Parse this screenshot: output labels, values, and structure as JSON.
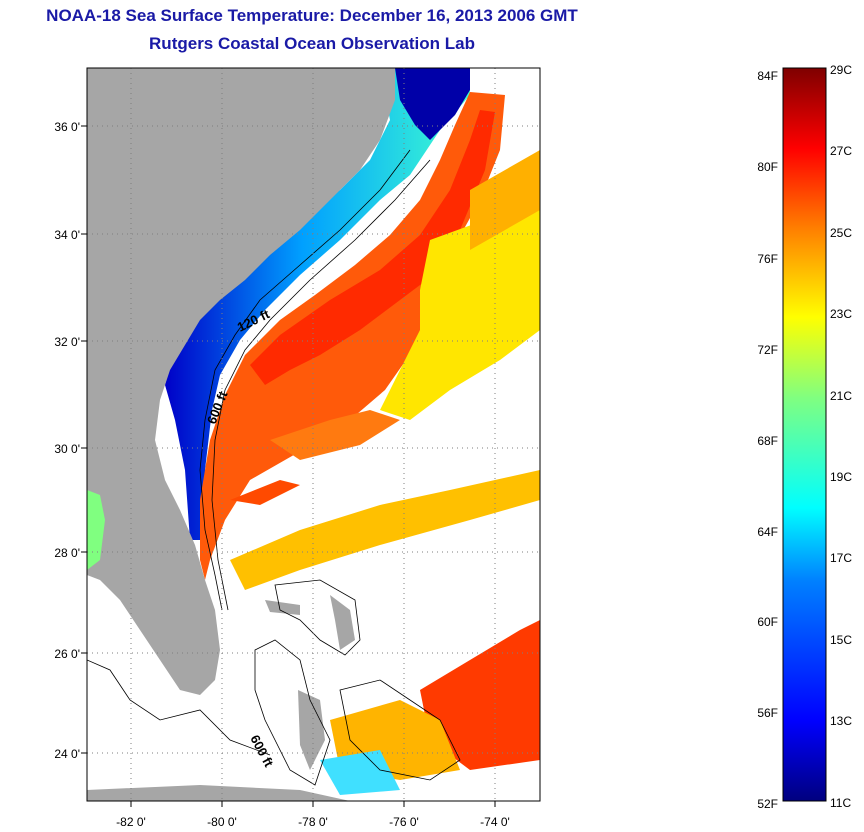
{
  "title": {
    "line1": "NOAA-18 Sea Surface Temperature:  December 16, 2013 2006 GMT",
    "line2": "Rutgers Coastal Ocean Observation Lab"
  },
  "map": {
    "lon_ticks": [
      "-82 0'",
      "-80 0'",
      "-78 0'",
      "-76 0'",
      "-74 0'"
    ],
    "lat_ticks": [
      "36 0'",
      "34 0'",
      "32 0'",
      "30 0'",
      "28 0'",
      "26 0'",
      "24 0'"
    ],
    "isobath_labels": [
      "120 ft",
      "600 ft",
      "600 ft"
    ],
    "colors": {
      "land": "#a6a6a6",
      "cloud_nodata": "#ffffff",
      "grid": "#7f7f7f"
    }
  },
  "colorbar": {
    "fahrenheit_labels": [
      "84F",
      "80F",
      "76F",
      "72F",
      "68F",
      "64F",
      "60F",
      "56F",
      "52F"
    ],
    "celsius_labels": [
      "29C",
      "27C",
      "25C",
      "23C",
      "21C",
      "19C",
      "17C",
      "15C",
      "13C",
      "11C"
    ],
    "range_c": [
      11,
      29
    ],
    "colors": [
      "#00007f",
      "#0000ff",
      "#0080ff",
      "#00ffff",
      "#80ff80",
      "#ffff00",
      "#ff8000",
      "#ff0000",
      "#7f0000"
    ]
  }
}
